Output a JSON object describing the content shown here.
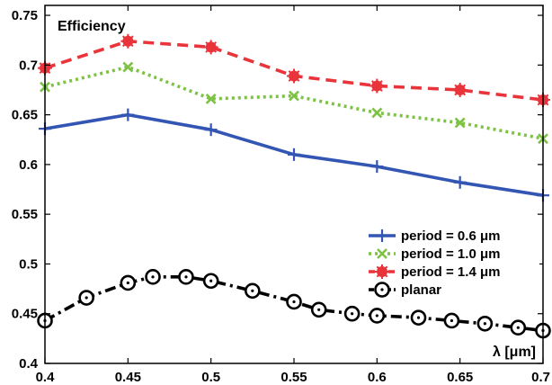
{
  "chart_data": {
    "type": "line",
    "title": "",
    "ylabel": "Efficiency",
    "xlabel": "λ [μm]",
    "xlim": [
      0.4,
      0.7
    ],
    "ylim": [
      0.4,
      0.76
    ],
    "xticks": [
      "0.4",
      "0.45",
      "0.5",
      "0.55",
      "0.6",
      "0.65",
      "0.7"
    ],
    "xtick_values": [
      0.4,
      0.45,
      0.5,
      0.55,
      0.6,
      0.65,
      0.7
    ],
    "yticks": [
      "0.4",
      "0.45",
      "0.5",
      "0.55",
      "0.6",
      "0.65",
      "0.7",
      "0.75"
    ],
    "ytick_values": [
      0.4,
      0.45,
      0.5,
      0.55,
      0.6,
      0.65,
      0.7,
      0.75
    ],
    "grid": false,
    "legend_position": "lower-right",
    "series": [
      {
        "name": "period = 0.6 μm",
        "color": "#3355b3",
        "dash": "solid",
        "marker": "plus",
        "x": [
          0.4,
          0.45,
          0.5,
          0.55,
          0.6,
          0.65,
          0.7
        ],
        "y": [
          0.636,
          0.65,
          0.635,
          0.61,
          0.598,
          0.582,
          0.569
        ]
      },
      {
        "name": "period = 1.0 μm",
        "color": "#7dc242",
        "dash": "dotted",
        "marker": "x",
        "x": [
          0.4,
          0.45,
          0.5,
          0.55,
          0.6,
          0.65,
          0.7
        ],
        "y": [
          0.678,
          0.698,
          0.666,
          0.669,
          0.652,
          0.642,
          0.626
        ]
      },
      {
        "name": "period = 1.4 μm",
        "color": "#e8343a",
        "dash": "dashed",
        "marker": "star",
        "x": [
          0.4,
          0.45,
          0.5,
          0.55,
          0.6,
          0.65,
          0.7
        ],
        "y": [
          0.697,
          0.724,
          0.718,
          0.689,
          0.679,
          0.675,
          0.665
        ]
      },
      {
        "name": "planar",
        "color": "#000000",
        "dash": "dashdot",
        "marker": "circle",
        "x": [
          0.4,
          0.425,
          0.45,
          0.465,
          0.485,
          0.5,
          0.525,
          0.55,
          0.565,
          0.585,
          0.6,
          0.625,
          0.645,
          0.665,
          0.685,
          0.7
        ],
        "y": [
          0.443,
          0.466,
          0.481,
          0.487,
          0.487,
          0.483,
          0.473,
          0.462,
          0.454,
          0.45,
          0.448,
          0.446,
          0.443,
          0.44,
          0.436,
          0.433
        ]
      }
    ]
  }
}
